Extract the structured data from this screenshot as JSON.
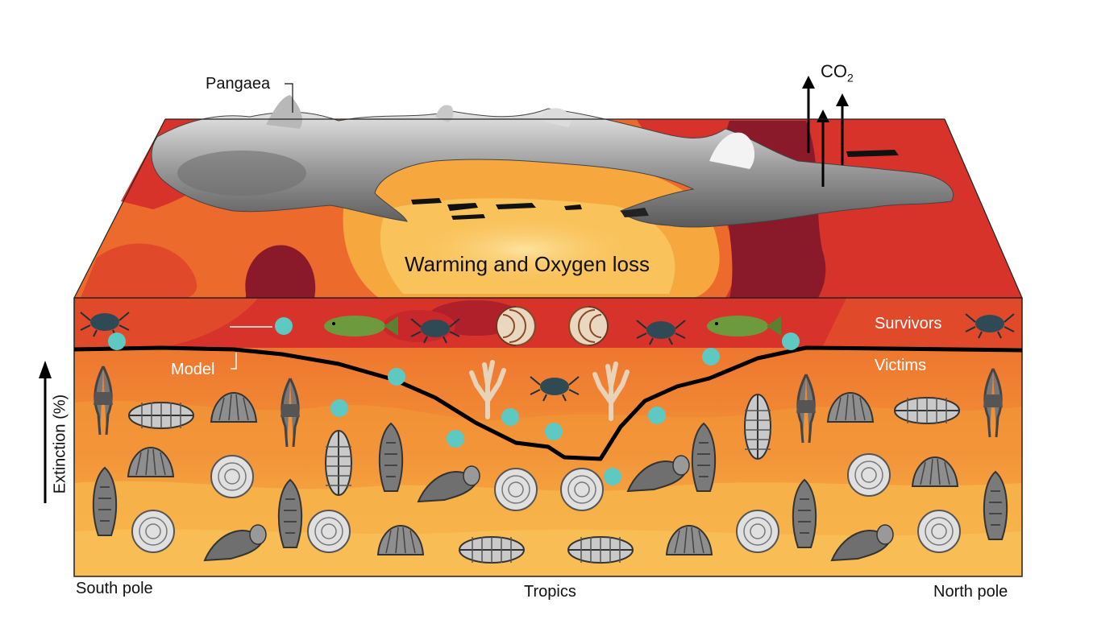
{
  "labels": {
    "pangaea": "Pangaea",
    "co2_main": "CO",
    "co2_sub": "2",
    "top_title": "Warming and Oxygen loss",
    "survivors": "Survivors",
    "victims": "Victims",
    "model": "Model",
    "y_axis": "Extinction (%)",
    "south_pole": "South pole",
    "tropics": "Tropics",
    "north_pole": "North pole"
  },
  "icons": {
    "crab": "crab-icon",
    "fish": "fish-icon",
    "nautilus": "nautilus-icon",
    "coral": "coral-icon",
    "trilobite": "trilobite-icon",
    "brachiopod": "brachiopod-icon",
    "crinoid": "crinoid-icon",
    "ammonoid": "ammonoid-icon",
    "cone_shell": "cone-shell-icon",
    "bryozoan": "bryozoan-icon",
    "gastropod_horn": "horn-shell-icon",
    "co2_arrow": "up-arrow-icon",
    "data_point": "data-point-dot"
  },
  "colors": {
    "ocean_deep_red": "#8a1a2a",
    "ocean_red": "#d8332a",
    "ocean_orange": "#ec6a2c",
    "ocean_light_orange": "#f4a23f",
    "ocean_yellow": "#f9c25a",
    "data_point": "#5ec8c2",
    "model_line": "#000000",
    "land": "#8c8c8c"
  }
}
